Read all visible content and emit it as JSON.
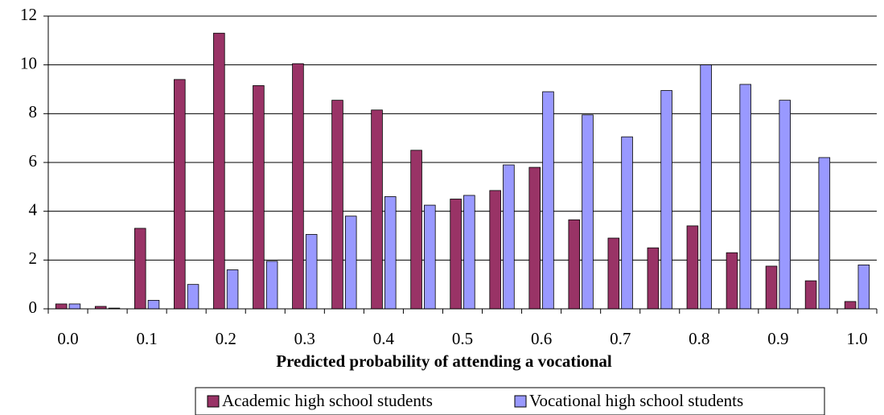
{
  "chart_data": {
    "type": "bar",
    "x_label": "Predicted probability of attending a vocational",
    "categories": [
      "0.0",
      null,
      "0.1",
      null,
      "0.2",
      null,
      "0.3",
      null,
      "0.4",
      null,
      "0.5",
      null,
      "0.6",
      null,
      "0.7",
      null,
      "0.8",
      null,
      "0.9",
      null,
      "1.0"
    ],
    "series": [
      {
        "name": "Academic high school students",
        "color": "#993366",
        "values": [
          0.2,
          0.1,
          3.3,
          9.4,
          11.3,
          9.15,
          10.05,
          8.55,
          8.15,
          6.5,
          4.5,
          4.85,
          5.8,
          3.65,
          2.9,
          2.5,
          3.4,
          2.3,
          1.75,
          1.15,
          0.3
        ]
      },
      {
        "name": "Vocational high school students",
        "color": "#9999ff",
        "values": [
          0.2,
          0.03,
          0.35,
          1.0,
          1.6,
          1.95,
          3.05,
          3.8,
          4.6,
          4.25,
          4.65,
          5.9,
          8.9,
          7.95,
          7.05,
          8.95,
          10.0,
          9.2,
          8.55,
          6.2,
          1.8
        ]
      }
    ],
    "ylim": [
      0,
      12
    ],
    "yticks": [
      0,
      2,
      4,
      6,
      8,
      10,
      12
    ],
    "grid": true,
    "legend": "bottom"
  }
}
